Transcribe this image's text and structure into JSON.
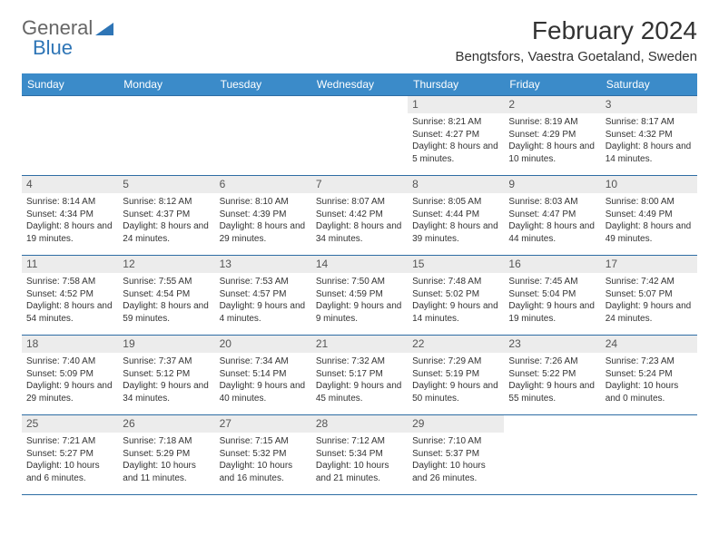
{
  "brand": {
    "part1": "General",
    "part2": "Blue",
    "logo_color": "#2e75b6",
    "text_color": "#666"
  },
  "title": "February 2024",
  "location": "Bengtsfors, Vaestra Goetaland, Sweden",
  "colors": {
    "header_bg": "#3b8bc9",
    "header_text": "#ffffff",
    "row_border": "#2e6da4",
    "daynum_bg": "#ececec",
    "body_text": "#333333"
  },
  "fonts": {
    "title_size": 28,
    "location_size": 15,
    "header_size": 12,
    "daynum_size": 12,
    "info_size": 10
  },
  "weekdays": [
    "Sunday",
    "Monday",
    "Tuesday",
    "Wednesday",
    "Thursday",
    "Friday",
    "Saturday"
  ],
  "weeks": [
    [
      {
        "empty": true
      },
      {
        "empty": true
      },
      {
        "empty": true
      },
      {
        "empty": true
      },
      {
        "day": "1",
        "sunrise": "Sunrise: 8:21 AM",
        "sunset": "Sunset: 4:27 PM",
        "daylight": "Daylight: 8 hours and 5 minutes."
      },
      {
        "day": "2",
        "sunrise": "Sunrise: 8:19 AM",
        "sunset": "Sunset: 4:29 PM",
        "daylight": "Daylight: 8 hours and 10 minutes."
      },
      {
        "day": "3",
        "sunrise": "Sunrise: 8:17 AM",
        "sunset": "Sunset: 4:32 PM",
        "daylight": "Daylight: 8 hours and 14 minutes."
      }
    ],
    [
      {
        "day": "4",
        "sunrise": "Sunrise: 8:14 AM",
        "sunset": "Sunset: 4:34 PM",
        "daylight": "Daylight: 8 hours and 19 minutes."
      },
      {
        "day": "5",
        "sunrise": "Sunrise: 8:12 AM",
        "sunset": "Sunset: 4:37 PM",
        "daylight": "Daylight: 8 hours and 24 minutes."
      },
      {
        "day": "6",
        "sunrise": "Sunrise: 8:10 AM",
        "sunset": "Sunset: 4:39 PM",
        "daylight": "Daylight: 8 hours and 29 minutes."
      },
      {
        "day": "7",
        "sunrise": "Sunrise: 8:07 AM",
        "sunset": "Sunset: 4:42 PM",
        "daylight": "Daylight: 8 hours and 34 minutes."
      },
      {
        "day": "8",
        "sunrise": "Sunrise: 8:05 AM",
        "sunset": "Sunset: 4:44 PM",
        "daylight": "Daylight: 8 hours and 39 minutes."
      },
      {
        "day": "9",
        "sunrise": "Sunrise: 8:03 AM",
        "sunset": "Sunset: 4:47 PM",
        "daylight": "Daylight: 8 hours and 44 minutes."
      },
      {
        "day": "10",
        "sunrise": "Sunrise: 8:00 AM",
        "sunset": "Sunset: 4:49 PM",
        "daylight": "Daylight: 8 hours and 49 minutes."
      }
    ],
    [
      {
        "day": "11",
        "sunrise": "Sunrise: 7:58 AM",
        "sunset": "Sunset: 4:52 PM",
        "daylight": "Daylight: 8 hours and 54 minutes."
      },
      {
        "day": "12",
        "sunrise": "Sunrise: 7:55 AM",
        "sunset": "Sunset: 4:54 PM",
        "daylight": "Daylight: 8 hours and 59 minutes."
      },
      {
        "day": "13",
        "sunrise": "Sunrise: 7:53 AM",
        "sunset": "Sunset: 4:57 PM",
        "daylight": "Daylight: 9 hours and 4 minutes."
      },
      {
        "day": "14",
        "sunrise": "Sunrise: 7:50 AM",
        "sunset": "Sunset: 4:59 PM",
        "daylight": "Daylight: 9 hours and 9 minutes."
      },
      {
        "day": "15",
        "sunrise": "Sunrise: 7:48 AM",
        "sunset": "Sunset: 5:02 PM",
        "daylight": "Daylight: 9 hours and 14 minutes."
      },
      {
        "day": "16",
        "sunrise": "Sunrise: 7:45 AM",
        "sunset": "Sunset: 5:04 PM",
        "daylight": "Daylight: 9 hours and 19 minutes."
      },
      {
        "day": "17",
        "sunrise": "Sunrise: 7:42 AM",
        "sunset": "Sunset: 5:07 PM",
        "daylight": "Daylight: 9 hours and 24 minutes."
      }
    ],
    [
      {
        "day": "18",
        "sunrise": "Sunrise: 7:40 AM",
        "sunset": "Sunset: 5:09 PM",
        "daylight": "Daylight: 9 hours and 29 minutes."
      },
      {
        "day": "19",
        "sunrise": "Sunrise: 7:37 AM",
        "sunset": "Sunset: 5:12 PM",
        "daylight": "Daylight: 9 hours and 34 minutes."
      },
      {
        "day": "20",
        "sunrise": "Sunrise: 7:34 AM",
        "sunset": "Sunset: 5:14 PM",
        "daylight": "Daylight: 9 hours and 40 minutes."
      },
      {
        "day": "21",
        "sunrise": "Sunrise: 7:32 AM",
        "sunset": "Sunset: 5:17 PM",
        "daylight": "Daylight: 9 hours and 45 minutes."
      },
      {
        "day": "22",
        "sunrise": "Sunrise: 7:29 AM",
        "sunset": "Sunset: 5:19 PM",
        "daylight": "Daylight: 9 hours and 50 minutes."
      },
      {
        "day": "23",
        "sunrise": "Sunrise: 7:26 AM",
        "sunset": "Sunset: 5:22 PM",
        "daylight": "Daylight: 9 hours and 55 minutes."
      },
      {
        "day": "24",
        "sunrise": "Sunrise: 7:23 AM",
        "sunset": "Sunset: 5:24 PM",
        "daylight": "Daylight: 10 hours and 0 minutes."
      }
    ],
    [
      {
        "day": "25",
        "sunrise": "Sunrise: 7:21 AM",
        "sunset": "Sunset: 5:27 PM",
        "daylight": "Daylight: 10 hours and 6 minutes."
      },
      {
        "day": "26",
        "sunrise": "Sunrise: 7:18 AM",
        "sunset": "Sunset: 5:29 PM",
        "daylight": "Daylight: 10 hours and 11 minutes."
      },
      {
        "day": "27",
        "sunrise": "Sunrise: 7:15 AM",
        "sunset": "Sunset: 5:32 PM",
        "daylight": "Daylight: 10 hours and 16 minutes."
      },
      {
        "day": "28",
        "sunrise": "Sunrise: 7:12 AM",
        "sunset": "Sunset: 5:34 PM",
        "daylight": "Daylight: 10 hours and 21 minutes."
      },
      {
        "day": "29",
        "sunrise": "Sunrise: 7:10 AM",
        "sunset": "Sunset: 5:37 PM",
        "daylight": "Daylight: 10 hours and 26 minutes."
      },
      {
        "empty": true
      },
      {
        "empty": true
      }
    ]
  ]
}
